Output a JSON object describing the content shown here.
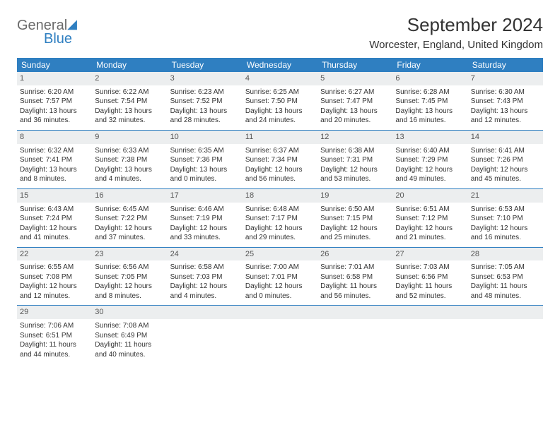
{
  "brand": {
    "word1": "General",
    "word2": "Blue"
  },
  "title": "September 2024",
  "location": "Worcester, England, United Kingdom",
  "colors": {
    "header_bg": "#2f7fc1",
    "header_text": "#ffffff",
    "daynum_bg": "#eceeef",
    "rule": "#2f7fc1",
    "body_text": "#333333",
    "logo_gray": "#6b6b6b",
    "logo_blue": "#2f7fc1",
    "page_bg": "#ffffff"
  },
  "typography": {
    "title_fontsize": 26,
    "location_fontsize": 15,
    "weekday_fontsize": 12,
    "daynum_fontsize": 11,
    "body_fontsize": 10
  },
  "weekdays": [
    "Sunday",
    "Monday",
    "Tuesday",
    "Wednesday",
    "Thursday",
    "Friday",
    "Saturday"
  ],
  "weeks": [
    [
      {
        "n": "1",
        "sunrise": "Sunrise: 6:20 AM",
        "sunset": "Sunset: 7:57 PM",
        "daylight": "Daylight: 13 hours and 36 minutes."
      },
      {
        "n": "2",
        "sunrise": "Sunrise: 6:22 AM",
        "sunset": "Sunset: 7:54 PM",
        "daylight": "Daylight: 13 hours and 32 minutes."
      },
      {
        "n": "3",
        "sunrise": "Sunrise: 6:23 AM",
        "sunset": "Sunset: 7:52 PM",
        "daylight": "Daylight: 13 hours and 28 minutes."
      },
      {
        "n": "4",
        "sunrise": "Sunrise: 6:25 AM",
        "sunset": "Sunset: 7:50 PM",
        "daylight": "Daylight: 13 hours and 24 minutes."
      },
      {
        "n": "5",
        "sunrise": "Sunrise: 6:27 AM",
        "sunset": "Sunset: 7:47 PM",
        "daylight": "Daylight: 13 hours and 20 minutes."
      },
      {
        "n": "6",
        "sunrise": "Sunrise: 6:28 AM",
        "sunset": "Sunset: 7:45 PM",
        "daylight": "Daylight: 13 hours and 16 minutes."
      },
      {
        "n": "7",
        "sunrise": "Sunrise: 6:30 AM",
        "sunset": "Sunset: 7:43 PM",
        "daylight": "Daylight: 13 hours and 12 minutes."
      }
    ],
    [
      {
        "n": "8",
        "sunrise": "Sunrise: 6:32 AM",
        "sunset": "Sunset: 7:41 PM",
        "daylight": "Daylight: 13 hours and 8 minutes."
      },
      {
        "n": "9",
        "sunrise": "Sunrise: 6:33 AM",
        "sunset": "Sunset: 7:38 PM",
        "daylight": "Daylight: 13 hours and 4 minutes."
      },
      {
        "n": "10",
        "sunrise": "Sunrise: 6:35 AM",
        "sunset": "Sunset: 7:36 PM",
        "daylight": "Daylight: 13 hours and 0 minutes."
      },
      {
        "n": "11",
        "sunrise": "Sunrise: 6:37 AM",
        "sunset": "Sunset: 7:34 PM",
        "daylight": "Daylight: 12 hours and 56 minutes."
      },
      {
        "n": "12",
        "sunrise": "Sunrise: 6:38 AM",
        "sunset": "Sunset: 7:31 PM",
        "daylight": "Daylight: 12 hours and 53 minutes."
      },
      {
        "n": "13",
        "sunrise": "Sunrise: 6:40 AM",
        "sunset": "Sunset: 7:29 PM",
        "daylight": "Daylight: 12 hours and 49 minutes."
      },
      {
        "n": "14",
        "sunrise": "Sunrise: 6:41 AM",
        "sunset": "Sunset: 7:26 PM",
        "daylight": "Daylight: 12 hours and 45 minutes."
      }
    ],
    [
      {
        "n": "15",
        "sunrise": "Sunrise: 6:43 AM",
        "sunset": "Sunset: 7:24 PM",
        "daylight": "Daylight: 12 hours and 41 minutes."
      },
      {
        "n": "16",
        "sunrise": "Sunrise: 6:45 AM",
        "sunset": "Sunset: 7:22 PM",
        "daylight": "Daylight: 12 hours and 37 minutes."
      },
      {
        "n": "17",
        "sunrise": "Sunrise: 6:46 AM",
        "sunset": "Sunset: 7:19 PM",
        "daylight": "Daylight: 12 hours and 33 minutes."
      },
      {
        "n": "18",
        "sunrise": "Sunrise: 6:48 AM",
        "sunset": "Sunset: 7:17 PM",
        "daylight": "Daylight: 12 hours and 29 minutes."
      },
      {
        "n": "19",
        "sunrise": "Sunrise: 6:50 AM",
        "sunset": "Sunset: 7:15 PM",
        "daylight": "Daylight: 12 hours and 25 minutes."
      },
      {
        "n": "20",
        "sunrise": "Sunrise: 6:51 AM",
        "sunset": "Sunset: 7:12 PM",
        "daylight": "Daylight: 12 hours and 21 minutes."
      },
      {
        "n": "21",
        "sunrise": "Sunrise: 6:53 AM",
        "sunset": "Sunset: 7:10 PM",
        "daylight": "Daylight: 12 hours and 16 minutes."
      }
    ],
    [
      {
        "n": "22",
        "sunrise": "Sunrise: 6:55 AM",
        "sunset": "Sunset: 7:08 PM",
        "daylight": "Daylight: 12 hours and 12 minutes."
      },
      {
        "n": "23",
        "sunrise": "Sunrise: 6:56 AM",
        "sunset": "Sunset: 7:05 PM",
        "daylight": "Daylight: 12 hours and 8 minutes."
      },
      {
        "n": "24",
        "sunrise": "Sunrise: 6:58 AM",
        "sunset": "Sunset: 7:03 PM",
        "daylight": "Daylight: 12 hours and 4 minutes."
      },
      {
        "n": "25",
        "sunrise": "Sunrise: 7:00 AM",
        "sunset": "Sunset: 7:01 PM",
        "daylight": "Daylight: 12 hours and 0 minutes."
      },
      {
        "n": "26",
        "sunrise": "Sunrise: 7:01 AM",
        "sunset": "Sunset: 6:58 PM",
        "daylight": "Daylight: 11 hours and 56 minutes."
      },
      {
        "n": "27",
        "sunrise": "Sunrise: 7:03 AM",
        "sunset": "Sunset: 6:56 PM",
        "daylight": "Daylight: 11 hours and 52 minutes."
      },
      {
        "n": "28",
        "sunrise": "Sunrise: 7:05 AM",
        "sunset": "Sunset: 6:53 PM",
        "daylight": "Daylight: 11 hours and 48 minutes."
      }
    ],
    [
      {
        "n": "29",
        "sunrise": "Sunrise: 7:06 AM",
        "sunset": "Sunset: 6:51 PM",
        "daylight": "Daylight: 11 hours and 44 minutes."
      },
      {
        "n": "30",
        "sunrise": "Sunrise: 7:08 AM",
        "sunset": "Sunset: 6:49 PM",
        "daylight": "Daylight: 11 hours and 40 minutes."
      },
      {
        "n": "",
        "sunrise": "",
        "sunset": "",
        "daylight": ""
      },
      {
        "n": "",
        "sunrise": "",
        "sunset": "",
        "daylight": ""
      },
      {
        "n": "",
        "sunrise": "",
        "sunset": "",
        "daylight": ""
      },
      {
        "n": "",
        "sunrise": "",
        "sunset": "",
        "daylight": ""
      },
      {
        "n": "",
        "sunrise": "",
        "sunset": "",
        "daylight": ""
      }
    ]
  ]
}
